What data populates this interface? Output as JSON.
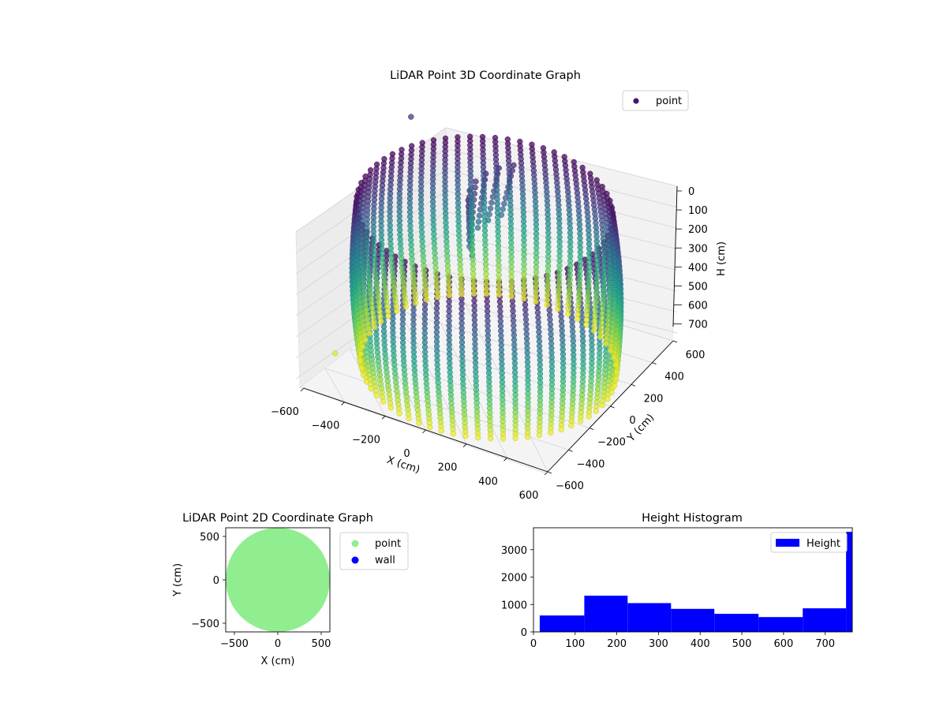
{
  "chart_data": [
    {
      "type": "scatter3d",
      "title": "LiDAR Point 3D Coordinate Graph",
      "xlabel": "X (cm)",
      "ylabel": "Y (cm)",
      "zlabel": "H (cm)",
      "xlim": [
        -600,
        600
      ],
      "ylim": [
        -600,
        600
      ],
      "zlim": [
        0,
        750
      ],
      "z_inverted": true,
      "x_ticks": [
        "−600",
        "−400",
        "−200",
        "0",
        "200",
        "400",
        "600"
      ],
      "y_ticks": [
        "−600",
        "−400",
        "−200",
        "0",
        "200",
        "400",
        "600"
      ],
      "z_ticks": [
        "0",
        "100",
        "200",
        "300",
        "400",
        "500",
        "600",
        "700"
      ],
      "legend": {
        "label": "point",
        "placement": "upper-right"
      },
      "colormap": "viridis",
      "grid": true,
      "description_shape": "cylindrical wall of points, radius about 550 cm, heights 0 to 760 cm"
    },
    {
      "type": "scatter",
      "title": "LiDAR Point 2D Coordinate Graph",
      "xlabel": "X (cm)",
      "ylabel": "Y (cm)",
      "xlim": [
        -600,
        600
      ],
      "ylim": [
        -600,
        600
      ],
      "x_ticks": [
        "−500",
        "0",
        "500"
      ],
      "y_ticks": [
        "−500",
        "0",
        "500"
      ],
      "series": [
        {
          "name": "point",
          "color": "#90ee90",
          "shape": "filled disk",
          "radius": 600
        },
        {
          "name": "wall",
          "color": "#0000ff"
        }
      ],
      "legend": "outside-right"
    },
    {
      "type": "histogram",
      "title": "Height Histogram",
      "xlabel": "",
      "ylabel": "",
      "xlim": [
        0,
        765
      ],
      "ylim": [
        0,
        3800
      ],
      "x_ticks": [
        "0",
        "100",
        "200",
        "300",
        "400",
        "500",
        "600",
        "700"
      ],
      "y_ticks": [
        "0",
        "1000",
        "2000",
        "3000"
      ],
      "bar_color": "#0000ff",
      "bins": [
        {
          "start": 15,
          "end": 122,
          "count": 600
        },
        {
          "start": 122,
          "end": 226,
          "count": 1320
        },
        {
          "start": 226,
          "end": 330,
          "count": 1050
        },
        {
          "start": 330,
          "end": 434,
          "count": 840
        },
        {
          "start": 434,
          "end": 540,
          "count": 660
        },
        {
          "start": 540,
          "end": 646,
          "count": 540
        },
        {
          "start": 646,
          "end": 750,
          "count": 860
        },
        {
          "start": 750,
          "end": 765,
          "count": 3650
        }
      ],
      "legend": {
        "label": "Height",
        "placement": "upper-right"
      }
    }
  ]
}
